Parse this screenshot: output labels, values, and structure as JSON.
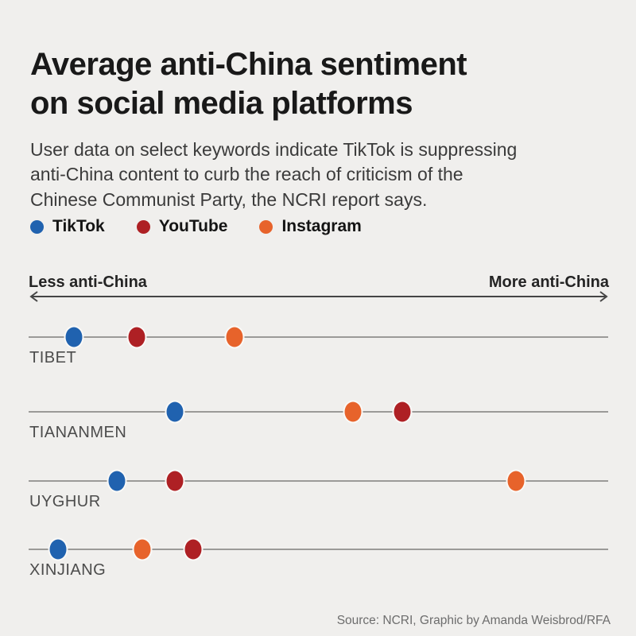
{
  "header": {
    "title_lines": [
      "Average anti-China sentiment",
      "on social media platforms"
    ],
    "subtitle_lines": [
      "User data on select keywords indicate TikTok is suppressing",
      "anti-China content to curb the reach of criticism of the",
      "Chinese Communist Party, the NCRI report says."
    ]
  },
  "axis": {
    "left_label": "Less anti-China",
    "right_label": "More anti-China"
  },
  "footer": {
    "source": "Source: NCRI, Graphic by Amanda Weisbrod/RFA"
  },
  "colors": {
    "background": "#f0efed",
    "tiktok": "#2062af",
    "youtube": "#ae2024",
    "instagram": "#e7632b",
    "row_line": "#9b9a98",
    "arrow": "#454545"
  },
  "chart_data": {
    "type": "scatter",
    "title": "Average anti-China sentiment on social media platforms",
    "subtitle": "User data on select keywords indicate TikTok is suppressing anti-China content to curb the reach of criticism of the Chinese Communist Party, the NCRI report says.",
    "categories": [
      "TIBET",
      "TIANANMEN",
      "UYGHUR",
      "XINJIANG"
    ],
    "xlabel": "anti-China sentiment (qualitative axis: Less anti-China to More anti-China)",
    "xlim": [
      0,
      1
    ],
    "x_ticks": "none (unlabeled qualitative axis)",
    "legend_position": "top",
    "grid": false,
    "series": [
      {
        "name": "TikTok",
        "color": "#2062af",
        "values": [
          0.078,
          0.253,
          0.152,
          0.051
        ]
      },
      {
        "name": "YouTube",
        "color": "#ae2024",
        "values": [
          0.186,
          0.645,
          0.252,
          0.284
        ]
      },
      {
        "name": "Instagram",
        "color": "#e7632b",
        "values": [
          0.355,
          0.56,
          0.841,
          0.196
        ]
      }
    ],
    "source": "Source: NCRI, Graphic by Amanda Weisbrod/RFA"
  }
}
